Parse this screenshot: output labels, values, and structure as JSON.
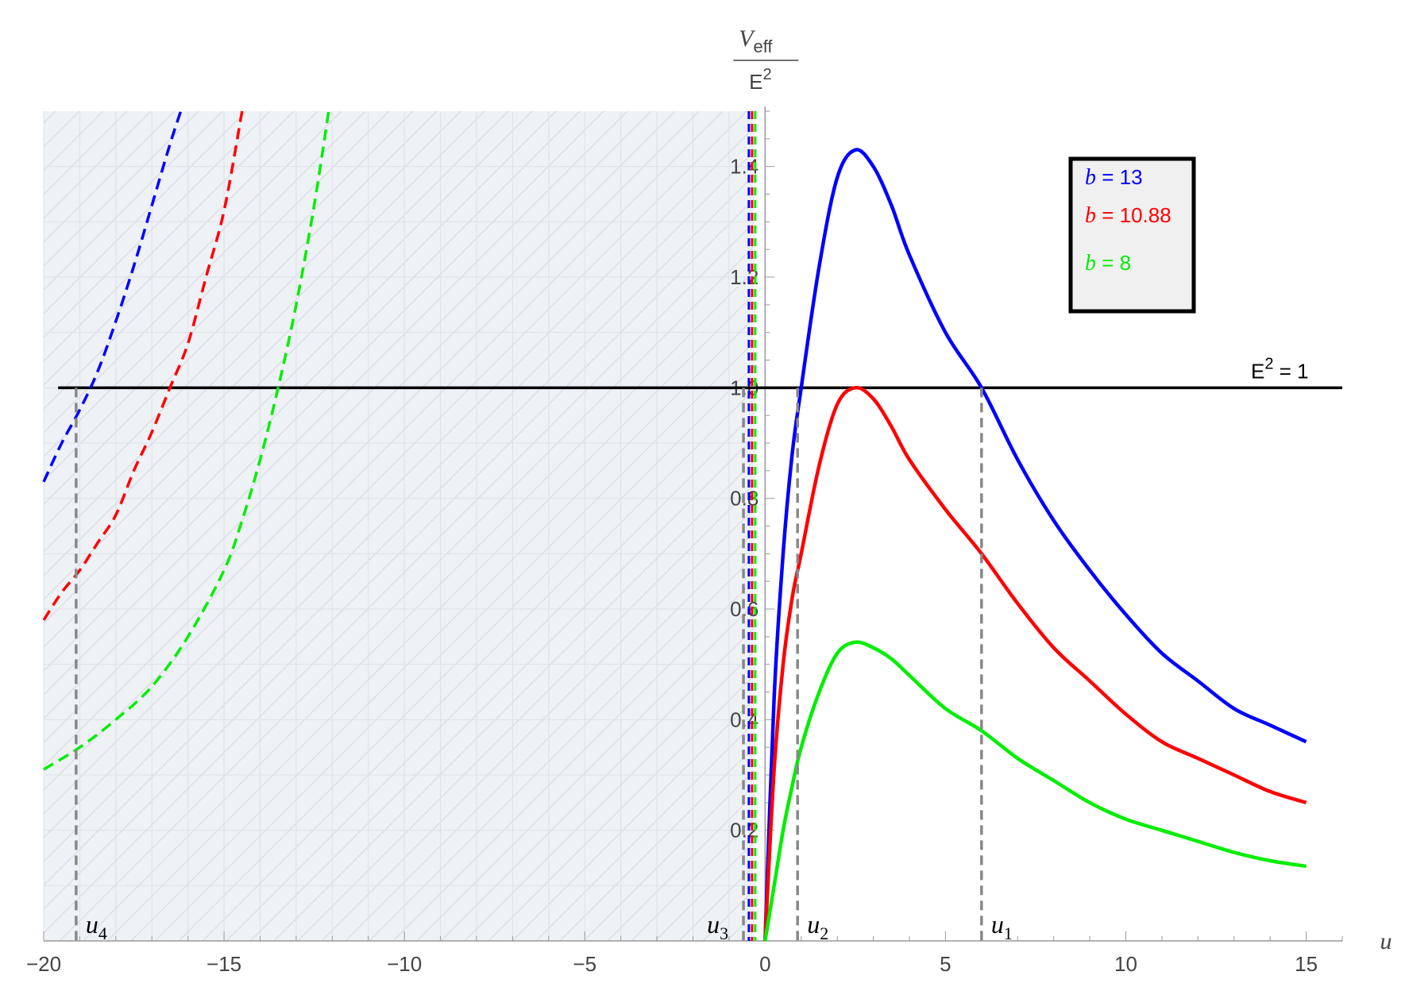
{
  "chart_data": {
    "type": "line",
    "xlabel": "u",
    "ylabel": {
      "numerator": "V",
      "numerator_sub": "eff",
      "denominator": "E",
      "denominator_sup": "2"
    },
    "xlim": [
      -20,
      16
    ],
    "ylim": [
      0,
      1.5
    ],
    "x_ticks": [
      -20,
      -15,
      -10,
      -5,
      0,
      5,
      10,
      15
    ],
    "x_tick_labels": [
      "−20",
      "−15",
      "−10",
      "−5",
      "0",
      "5",
      "10",
      "15"
    ],
    "y_ticks": [
      0.2,
      0.4,
      0.6,
      0.8,
      1.0,
      1.2,
      1.4
    ],
    "y_tick_labels": [
      "0.2",
      "0.4",
      "0.6",
      "0.8",
      "1.0",
      "1.2",
      "1.4"
    ],
    "shaded_region": {
      "x_from": -20,
      "x_to": -0.3,
      "fill": "#eef1f5",
      "hatched": true
    },
    "reference_line": {
      "y": 1.0,
      "label_base": "E",
      "label_sup": "2",
      "label_rest": " = 1",
      "color": "#000000"
    },
    "series": [
      {
        "b": "13",
        "color": "#0000ff",
        "solid": {
          "x": [
            0,
            0.25,
            0.5,
            0.75,
            1.0,
            1.5,
            2.0,
            2.5,
            3.0,
            3.5,
            4.0,
            5.0,
            6.0,
            7.0,
            8.0,
            9.0,
            10.0,
            11.0,
            12.0,
            13.0,
            14.0,
            15.0
          ],
          "y": [
            0,
            0.44,
            0.7,
            0.88,
            1.0,
            1.22,
            1.38,
            1.43,
            1.4,
            1.33,
            1.24,
            1.1,
            1.0,
            0.87,
            0.76,
            0.67,
            0.59,
            0.52,
            0.47,
            0.42,
            0.39,
            0.36
          ]
        },
        "dashed": {
          "x": [
            -20,
            -19.5,
            -19.0,
            -18.5,
            -18.0,
            -17.5,
            -17.0,
            -16.5,
            -16.2
          ],
          "y": [
            0.83,
            0.9,
            0.96,
            1.03,
            1.12,
            1.22,
            1.33,
            1.44,
            1.5
          ]
        }
      },
      {
        "b": "10.88",
        "color": "#ff0000",
        "solid": {
          "x": [
            0,
            0.25,
            0.5,
            0.75,
            1.0,
            1.5,
            2.0,
            2.5,
            3.0,
            3.5,
            4.0,
            5.0,
            6.0,
            7.0,
            8.0,
            9.0,
            10.0,
            11.0,
            12.0,
            13.0,
            14.0,
            15.0
          ],
          "y": [
            0,
            0.31,
            0.5,
            0.62,
            0.7,
            0.86,
            0.97,
            1.0,
            0.98,
            0.93,
            0.87,
            0.78,
            0.7,
            0.61,
            0.53,
            0.47,
            0.41,
            0.36,
            0.33,
            0.3,
            0.27,
            0.25
          ]
        },
        "dashed": {
          "x": [
            -20,
            -19.5,
            -19.0,
            -18.5,
            -18.0,
            -17.5,
            -17.0,
            -16.5,
            -16.0,
            -15.5,
            -15.0,
            -14.5
          ],
          "y": [
            0.58,
            0.63,
            0.67,
            0.72,
            0.77,
            0.85,
            0.92,
            1.0,
            1.08,
            1.2,
            1.32,
            1.5
          ]
        }
      },
      {
        "b": "8",
        "color": "#00ee00",
        "solid": {
          "x": [
            0,
            0.25,
            0.5,
            0.75,
            1.0,
            1.5,
            2.0,
            2.5,
            3.0,
            3.5,
            4.0,
            5.0,
            6.0,
            7.0,
            8.0,
            9.0,
            10.0,
            11.0,
            12.0,
            13.0,
            14.0,
            15.0
          ],
          "y": [
            0,
            0.1,
            0.2,
            0.28,
            0.35,
            0.45,
            0.52,
            0.54,
            0.53,
            0.51,
            0.48,
            0.42,
            0.38,
            0.33,
            0.29,
            0.25,
            0.22,
            0.2,
            0.18,
            0.16,
            0.145,
            0.135
          ]
        },
        "dashed": {
          "x": [
            -20,
            -19.0,
            -18.0,
            -17.0,
            -16.0,
            -15.0,
            -14.5,
            -14.0,
            -13.5,
            -13.0,
            -12.5,
            -12.1
          ],
          "y": [
            0.31,
            0.35,
            0.4,
            0.46,
            0.55,
            0.67,
            0.76,
            0.87,
            1.0,
            1.15,
            1.33,
            1.5
          ]
        }
      }
    ],
    "legend": {
      "position": "top-right",
      "entries": [
        {
          "var": "b",
          "text": " = 13",
          "color": "#0000ff"
        },
        {
          "var": "b",
          "text": " = 10.88",
          "color": "#ff0000"
        },
        {
          "var": "b",
          "text": " = 8",
          "color": "#00ee00"
        }
      ]
    },
    "markers": [
      {
        "name": "u",
        "sub": "1",
        "x": 6.0,
        "y_top": 1.0
      },
      {
        "name": "u",
        "sub": "2",
        "x": 0.9,
        "y_top": 1.0
      },
      {
        "name": "u",
        "sub": "3",
        "x": -0.6,
        "y_top": 1.0
      },
      {
        "name": "u",
        "sub": "4",
        "x": -19.1,
        "y_top": 1.0
      }
    ]
  }
}
